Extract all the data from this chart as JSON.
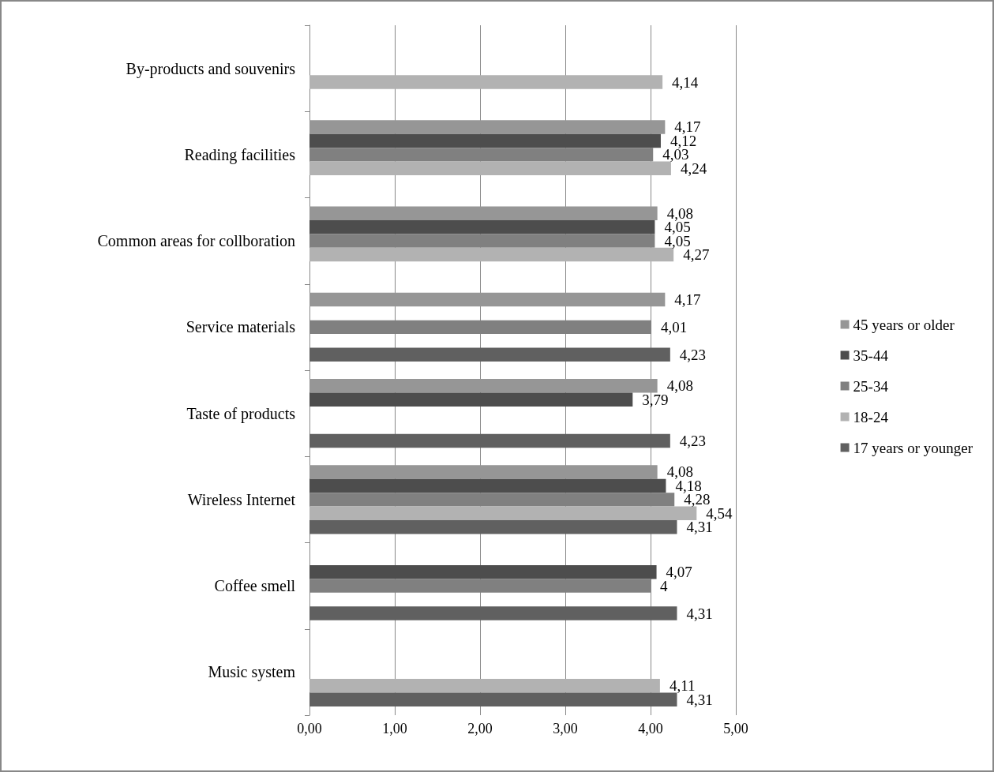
{
  "chart_data": {
    "type": "bar",
    "orientation": "horizontal",
    "categories": [
      "By-products and souvenirs",
      "Reading facilities",
      "Common areas for collboration",
      "Service materials",
      "Taste of products",
      "Wireless Internet",
      "Coffee smell",
      "Music system"
    ],
    "series": [
      {
        "name": "45 years or older",
        "color": "#969696",
        "values": [
          null,
          4.17,
          4.08,
          4.17,
          4.08,
          4.08,
          null,
          null
        ],
        "value_labels": [
          null,
          "4,17",
          "4,08",
          "4,17",
          "4,08",
          "4,08",
          null,
          null
        ]
      },
      {
        "name": "35-44",
        "color": "#4d4d4d",
        "values": [
          null,
          4.12,
          4.05,
          null,
          3.79,
          4.18,
          4.07,
          null
        ],
        "value_labels": [
          null,
          "4,12",
          "4,05",
          null,
          "3,79",
          "4,18",
          "4,07",
          null
        ]
      },
      {
        "name": "25-34",
        "color": "#808080",
        "values": [
          null,
          4.03,
          4.05,
          4.01,
          null,
          4.28,
          4,
          null
        ],
        "value_labels": [
          null,
          "4,03",
          "4,05",
          "4,01",
          null,
          "4,28",
          "4",
          null
        ]
      },
      {
        "name": "18-24",
        "color": "#b2b2b2",
        "values": [
          4.14,
          4.24,
          4.27,
          null,
          null,
          4.54,
          null,
          4.11
        ],
        "value_labels": [
          "4,14",
          "4,24",
          "4,27",
          null,
          null,
          "4,54",
          null,
          "4,11"
        ]
      },
      {
        "name": "17 years or younger",
        "color": "#606060",
        "values": [
          null,
          null,
          null,
          4.23,
          4.23,
          4.31,
          4.31,
          4.31
        ],
        "value_labels": [
          null,
          null,
          null,
          "4,23",
          "4,23",
          "4,31",
          "4,31",
          "4,31"
        ]
      }
    ],
    "xlim": [
      0,
      5
    ],
    "xticks": [
      {
        "value": 0,
        "label": "0,00"
      },
      {
        "value": 1,
        "label": "1,00"
      },
      {
        "value": 2,
        "label": "2,00"
      },
      {
        "value": 3,
        "label": "3,00"
      },
      {
        "value": 4,
        "label": "4,00"
      },
      {
        "value": 5,
        "label": "5,00"
      }
    ],
    "grid": "x",
    "legend": "right"
  }
}
